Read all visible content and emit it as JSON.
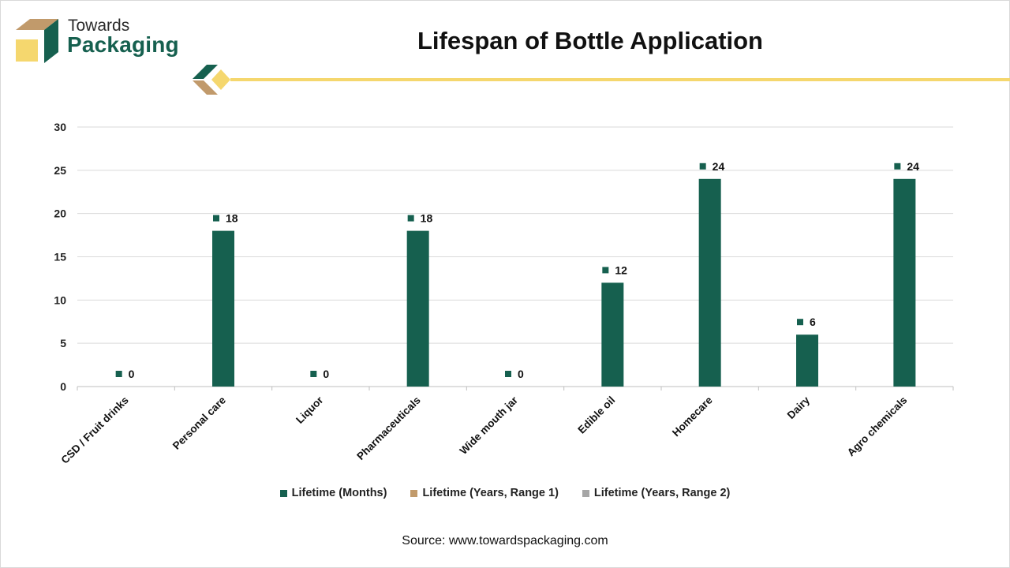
{
  "brand": {
    "name_top": "Towards",
    "name_main": "Packaging"
  },
  "title": "Lifespan of Bottle Application",
  "source": "Source: www.towardspackaging.com",
  "colors": {
    "primary": "#16604f",
    "tan": "#c19a6b",
    "gray": "#a6a6a6",
    "yellow": "#f5d76e"
  },
  "legend": [
    {
      "label": "Lifetime (Months)",
      "color": "#16604f"
    },
    {
      "label": "Lifetime (Years, Range 1)",
      "color": "#c19a6b"
    },
    {
      "label": "Lifetime (Years, Range 2)",
      "color": "#a6a6a6"
    }
  ],
  "chart_data": {
    "type": "bar",
    "title": "Lifespan of Bottle Application",
    "categories": [
      "CSD / Fruit drinks",
      "Personal care",
      "Liquor",
      "Pharmaceuticals",
      "Wide mouth jar",
      "Edible oil",
      "Homecare",
      "Dairy",
      "Agro chemicals"
    ],
    "series": [
      {
        "name": "Lifetime (Months)",
        "values": [
          0,
          18,
          0,
          18,
          0,
          12,
          24,
          6,
          24
        ]
      }
    ],
    "ylim": [
      0,
      30
    ],
    "yticks": [
      0,
      5,
      10,
      15,
      20,
      25,
      30
    ],
    "grid": true,
    "legend_position": "bottom"
  }
}
